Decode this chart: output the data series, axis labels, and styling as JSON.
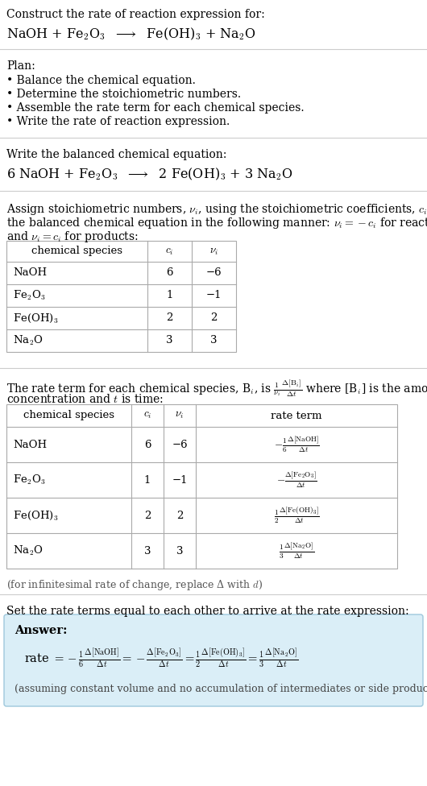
{
  "bg_color": "#ffffff",
  "text_color": "#000000",
  "title_line1": "Construct the rate of reaction expression for:",
  "plan_header": "Plan:",
  "plan_items": [
    "• Balance the chemical equation.",
    "• Determine the stoichiometric numbers.",
    "• Assemble the rate term for each chemical species.",
    "• Write the rate of reaction expression."
  ],
  "balanced_header": "Write the balanced chemical equation:",
  "stoich_intro_1": "Assign stoichiometric numbers, $\\nu_i$, using the stoichiometric coefficients, $c_i$, from",
  "stoich_intro_2": "the balanced chemical equation in the following manner: $\\nu_i = -c_i$ for reactants",
  "stoich_intro_3": "and $\\nu_i = c_i$ for products:",
  "table1_cols": [
    "chemical species",
    "$c_i$",
    "$\\nu_i$"
  ],
  "table1_rows": [
    [
      "NaOH",
      "6",
      "−6"
    ],
    [
      "Fe$_2$O$_3$",
      "1",
      "−1"
    ],
    [
      "Fe(OH)$_3$",
      "2",
      "2"
    ],
    [
      "Na$_2$O",
      "3",
      "3"
    ]
  ],
  "rate_intro_1": "The rate term for each chemical species, B$_i$, is $\\frac{1}{\\nu_i}\\frac{\\Delta[\\mathrm{B}_i]}{\\Delta t}$ where [B$_i$] is the amount",
  "rate_intro_2": "concentration and $t$ is time:",
  "table2_cols": [
    "chemical species",
    "$c_i$",
    "$\\nu_i$",
    "rate term"
  ],
  "table2_rows": [
    [
      "NaOH",
      "6",
      "−6",
      "$-\\frac{1}{6}\\frac{\\Delta[\\mathrm{NaOH}]}{\\Delta t}$"
    ],
    [
      "Fe$_2$O$_3$",
      "1",
      "−1",
      "$-\\frac{\\Delta[\\mathrm{Fe_2O_3}]}{\\Delta t}$"
    ],
    [
      "Fe(OH)$_3$",
      "2",
      "2",
      "$\\frac{1}{2}\\frac{\\Delta[\\mathrm{Fe(OH)_3}]}{\\Delta t}$"
    ],
    [
      "Na$_2$O",
      "3",
      "3",
      "$\\frac{1}{3}\\frac{\\Delta[\\mathrm{Na_2O}]}{\\Delta t}$"
    ]
  ],
  "infinitesimal_note": "(for infinitesimal rate of change, replace Δ with $d$)",
  "set_rate_text": "Set the rate terms equal to each other to arrive at the rate expression:",
  "answer_box_color": "#daeef7",
  "answer_border_color": "#9ec8dc",
  "answer_label": "Answer:",
  "answer_note": "(assuming constant volume and no accumulation of intermediates or side products)",
  "font_size_body": 10.0,
  "font_size_table": 9.5,
  "font_size_eq": 11.5,
  "font_size_note": 9.0
}
